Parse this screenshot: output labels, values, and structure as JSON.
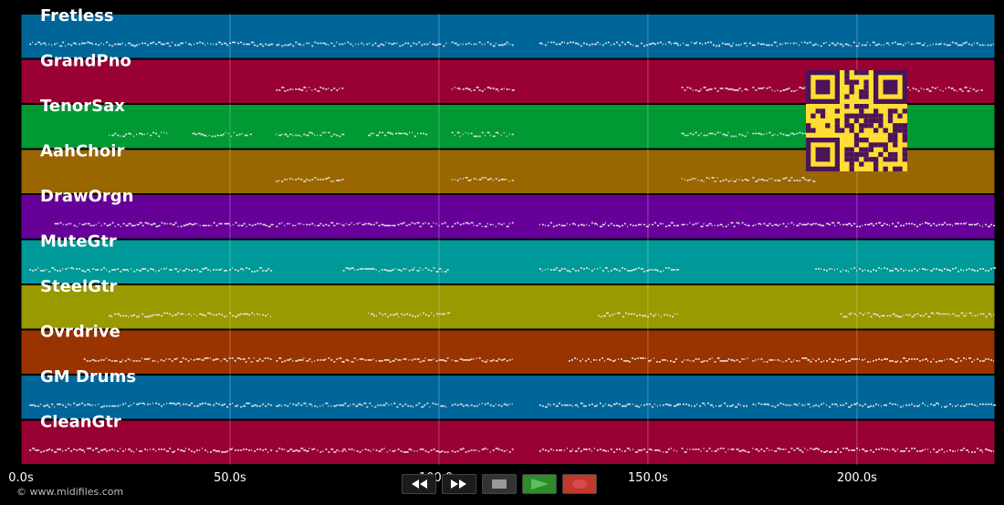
{
  "chart_data": {
    "type": "piano-roll",
    "x_unit": "s",
    "xlim": [
      0,
      233
    ],
    "x_ticks": [
      0,
      50,
      100,
      150,
      200
    ],
    "x_tick_labels": [
      "0.0s",
      "50.0s",
      "100.0s",
      "150.0s",
      "200.0s"
    ],
    "grid": true,
    "tracks": [
      {
        "name": "Fretless",
        "color": "#006699",
        "segments": [
          [
            2,
            60
          ],
          [
            61,
            102
          ],
          [
            103,
            118
          ],
          [
            124,
            157
          ],
          [
            157,
            167
          ],
          [
            167,
            233
          ]
        ]
      },
      {
        "name": "GrandPno",
        "color": "#990033",
        "segments": [
          [
            61,
            77
          ],
          [
            103,
            118
          ],
          [
            158,
            174
          ],
          [
            175,
            190
          ],
          [
            210,
            230
          ]
        ]
      },
      {
        "name": "TenorSax",
        "color": "#009933",
        "segments": [
          [
            21,
            35
          ],
          [
            41,
            55
          ],
          [
            61,
            77
          ],
          [
            83,
            97
          ],
          [
            103,
            118
          ],
          [
            158,
            174
          ],
          [
            175,
            190
          ]
        ]
      },
      {
        "name": "AahChoir",
        "color": "#996600",
        "segments": [
          [
            61,
            77
          ],
          [
            103,
            118
          ],
          [
            158,
            174
          ],
          [
            175,
            190
          ]
        ]
      },
      {
        "name": "DrawOrgn",
        "color": "#660099",
        "segments": [
          [
            8,
            60
          ],
          [
            61,
            77
          ],
          [
            77,
            102
          ],
          [
            103,
            118
          ],
          [
            124,
            157
          ],
          [
            158,
            174
          ],
          [
            175,
            190
          ],
          [
            190,
            233
          ]
        ]
      },
      {
        "name": "MuteGtr",
        "color": "#009999",
        "segments": [
          [
            2,
            60
          ],
          [
            77,
            102
          ],
          [
            124,
            157
          ],
          [
            190,
            233
          ]
        ]
      },
      {
        "name": "SteelGtr",
        "color": "#999900",
        "segments": [
          [
            21,
            60
          ],
          [
            83,
            102
          ],
          [
            138,
            157
          ],
          [
            196,
            233
          ]
        ]
      },
      {
        "name": "Ovrdrive",
        "color": "#993300",
        "segments": [
          [
            15,
            60
          ],
          [
            61,
            77
          ],
          [
            77,
            102
          ],
          [
            103,
            118
          ],
          [
            131,
            157
          ],
          [
            158,
            174
          ],
          [
            175,
            190
          ],
          [
            190,
            233
          ]
        ]
      },
      {
        "name": "GM Drums",
        "color": "#006699",
        "segments": [
          [
            2,
            60
          ],
          [
            61,
            102
          ],
          [
            103,
            118
          ],
          [
            124,
            157
          ],
          [
            157,
            174
          ],
          [
            175,
            190
          ],
          [
            190,
            233
          ]
        ]
      },
      {
        "name": "CleanGtr",
        "color": "#990033",
        "segments": [
          [
            2,
            60
          ],
          [
            61,
            77
          ],
          [
            77,
            102
          ],
          [
            103,
            118
          ],
          [
            124,
            157
          ],
          [
            158,
            174
          ],
          [
            175,
            190
          ],
          [
            190,
            233
          ]
        ]
      }
    ]
  },
  "footer": {
    "credit": "© www.midifiles.com"
  },
  "transport": {
    "rewind_icon": "rewind-icon",
    "forward_icon": "fast-forward-icon",
    "stop_icon": "stop-icon",
    "play_icon": "play-icon",
    "record_icon": "record-icon",
    "play_color": "#2e8b2e",
    "record_color": "#c0392b"
  },
  "overlay": {
    "qr_icon": "qr-code-icon",
    "qr_color": "#ffdd33"
  }
}
